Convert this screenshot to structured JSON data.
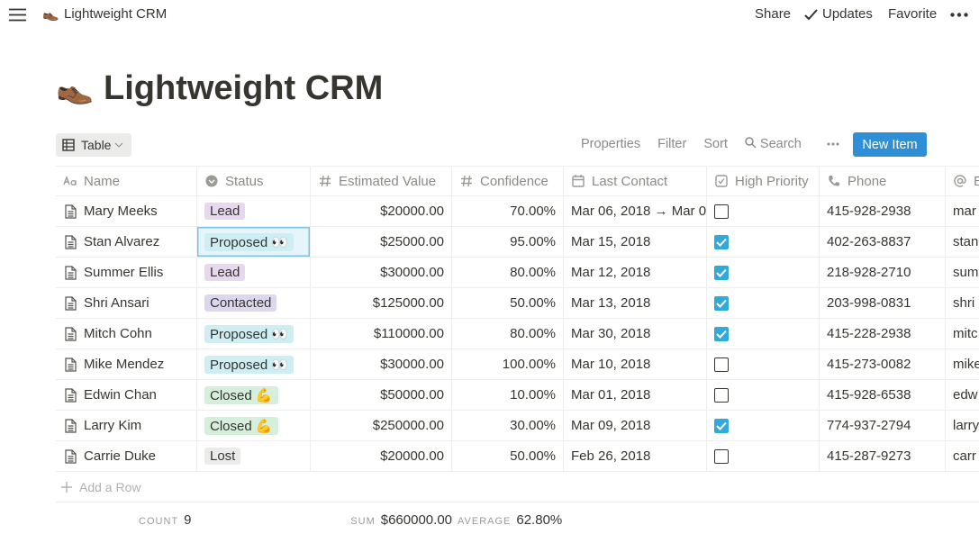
{
  "topbar": {
    "icon": "👞",
    "breadcrumb": "Lightweight CRM",
    "share": "Share",
    "updates": "Updates",
    "favorite": "Favorite"
  },
  "page": {
    "icon": "👞",
    "title": "Lightweight CRM"
  },
  "toolbar": {
    "view": "Table",
    "actions": [
      "Properties",
      "Filter",
      "Sort",
      "Search"
    ],
    "new_button": "New Item"
  },
  "table": {
    "columns": [
      {
        "label": "Name",
        "icon": "text"
      },
      {
        "label": "Status",
        "icon": "select"
      },
      {
        "label": "Estimated Value",
        "icon": "number"
      },
      {
        "label": "Confidence",
        "icon": "number"
      },
      {
        "label": "Last Contact",
        "icon": "date"
      },
      {
        "label": "High Priority",
        "icon": "checkbox"
      },
      {
        "label": "Phone",
        "icon": "phone"
      },
      {
        "label": "E",
        "icon": "email"
      }
    ],
    "rows": [
      [
        "Mary Meeks",
        {
          "label": "Lead",
          "color": "#e7d7ef"
        },
        "$20000.00",
        "70.00%",
        "Mar 06, 2018 → Mar 0",
        false,
        "415-928-2938",
        "mar"
      ],
      [
        "Stan Alvarez",
        {
          "label": "Proposed 👀",
          "color": "#cfeef4"
        },
        "$25000.00",
        "95.00%",
        "Mar 15, 2018",
        true,
        "402-263-8837",
        "stan"
      ],
      [
        "Summer Ellis",
        {
          "label": "Lead",
          "color": "#e7d7ef"
        },
        "$30000.00",
        "80.00%",
        "Mar 12, 2018",
        true,
        "218-928-2710",
        "sum"
      ],
      [
        "Shri Ansari",
        {
          "label": "Contacted",
          "color": "#dcd7ef"
        },
        "$125000.00",
        "50.00%",
        "Mar 13, 2018",
        true,
        "203-998-0831",
        "shri"
      ],
      [
        "Mitch Cohn",
        {
          "label": "Proposed 👀",
          "color": "#cfeef4"
        },
        "$110000.00",
        "80.00%",
        "Mar 30, 2018",
        true,
        "415-228-2938",
        "mitc"
      ],
      [
        "Mike Mendez",
        {
          "label": "Proposed 👀",
          "color": "#cfeef4"
        },
        "$30000.00",
        "100.00%",
        "Mar 10, 2018",
        false,
        "415-273-0082",
        "mike"
      ],
      [
        "Edwin Chan",
        {
          "label": "Closed 💪",
          "color": "#d5efdb"
        },
        "$50000.00",
        "10.00%",
        "Mar 01, 2018",
        false,
        "415-928-6538",
        "edw"
      ],
      [
        "Larry Kim",
        {
          "label": "Closed 💪",
          "color": "#d5efdb"
        },
        "$250000.00",
        "30.00%",
        "Mar 09, 2018",
        true,
        "774-937-2794",
        "larry"
      ],
      [
        "Carrie Duke",
        {
          "label": "Lost",
          "color": "#ebebea"
        },
        "$20000.00",
        "50.00%",
        "Feb 26, 2018",
        false,
        "415-287-9273",
        "carr"
      ]
    ],
    "add_row": "Add a Row",
    "footer": {
      "count": {
        "label": "COUNT",
        "value": "9"
      },
      "sum": {
        "label": "SUM",
        "value": "$660000.00"
      },
      "average": {
        "label": "AVERAGE",
        "value": "62.80%"
      }
    }
  }
}
